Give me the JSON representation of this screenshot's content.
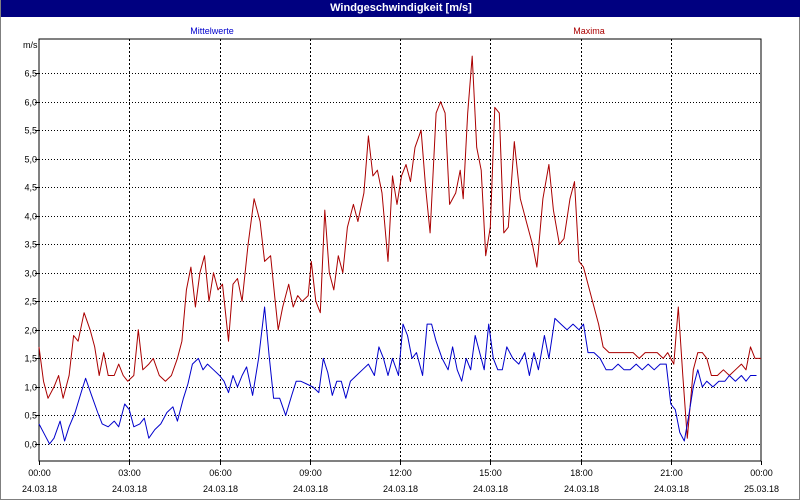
{
  "window": {
    "title": "Windgeschwindigkeit [m/s]"
  },
  "chart_data": {
    "type": "line",
    "title": "Windgeschwindigkeit [m/s]",
    "ylabel": "m/s",
    "ylim": [
      -0.3,
      7.1
    ],
    "yticks": [
      "0,0",
      "0,5",
      "1,0",
      "1,5",
      "2,0",
      "2,5",
      "3,0",
      "3,5",
      "4,0",
      "4,5",
      "5,0",
      "5,5",
      "6,0",
      "6,5"
    ],
    "ytick_values": [
      0,
      0.5,
      1,
      1.5,
      2,
      2.5,
      3,
      3.5,
      4,
      4.5,
      5,
      5.5,
      6,
      6.5
    ],
    "xlim": [
      0,
      24
    ],
    "xticks": [
      {
        "time": "00:00",
        "date": "24.03.18"
      },
      {
        "time": "03:00",
        "date": "24.03.18"
      },
      {
        "time": "06:00",
        "date": "24.03.18"
      },
      {
        "time": "09:00",
        "date": "24.03.18"
      },
      {
        "time": "12:00",
        "date": "24.03.18"
      },
      {
        "time": "15:00",
        "date": "24.03.18"
      },
      {
        "time": "18:00",
        "date": "24.03.18"
      },
      {
        "time": "21:00",
        "date": "24.03.18"
      },
      {
        "time": "00:00",
        "date": "25.03.18"
      }
    ],
    "xtick_hours": [
      0,
      3,
      6,
      9,
      12,
      15,
      18,
      21,
      24
    ],
    "grid": true,
    "series": [
      {
        "name": "Mittelwerte",
        "color": "#0000cc",
        "points": [
          [
            0.0,
            0.35
          ],
          [
            0.2,
            0.15
          ],
          [
            0.35,
            0.0
          ],
          [
            0.5,
            0.1
          ],
          [
            0.7,
            0.4
          ],
          [
            0.85,
            0.05
          ],
          [
            1.0,
            0.3
          ],
          [
            1.2,
            0.55
          ],
          [
            1.4,
            0.9
          ],
          [
            1.55,
            1.15
          ],
          [
            1.75,
            0.85
          ],
          [
            1.95,
            0.55
          ],
          [
            2.1,
            0.35
          ],
          [
            2.3,
            0.3
          ],
          [
            2.5,
            0.4
          ],
          [
            2.65,
            0.3
          ],
          [
            2.85,
            0.7
          ],
          [
            3.0,
            0.6
          ],
          [
            3.15,
            0.3
          ],
          [
            3.35,
            0.35
          ],
          [
            3.5,
            0.45
          ],
          [
            3.65,
            0.1
          ],
          [
            3.85,
            0.25
          ],
          [
            4.05,
            0.35
          ],
          [
            4.25,
            0.55
          ],
          [
            4.45,
            0.65
          ],
          [
            4.6,
            0.4
          ],
          [
            4.8,
            0.8
          ],
          [
            4.95,
            1.05
          ],
          [
            5.1,
            1.4
          ],
          [
            5.3,
            1.5
          ],
          [
            5.45,
            1.3
          ],
          [
            5.6,
            1.4
          ],
          [
            5.8,
            1.3
          ],
          [
            6.0,
            1.2
          ],
          [
            6.15,
            1.1
          ],
          [
            6.3,
            0.9
          ],
          [
            6.45,
            1.2
          ],
          [
            6.6,
            1.0
          ],
          [
            6.75,
            1.2
          ],
          [
            6.9,
            1.35
          ],
          [
            7.1,
            0.85
          ],
          [
            7.3,
            1.5
          ],
          [
            7.5,
            2.4
          ],
          [
            7.65,
            1.55
          ],
          [
            7.8,
            0.8
          ],
          [
            8.0,
            0.8
          ],
          [
            8.2,
            0.5
          ],
          [
            8.4,
            0.85
          ],
          [
            8.55,
            1.1
          ],
          [
            8.7,
            1.1
          ],
          [
            8.9,
            1.05
          ],
          [
            9.1,
            1.0
          ],
          [
            9.3,
            0.9
          ],
          [
            9.45,
            1.5
          ],
          [
            9.6,
            1.25
          ],
          [
            9.75,
            0.85
          ],
          [
            9.9,
            1.1
          ],
          [
            10.05,
            1.1
          ],
          [
            10.2,
            0.8
          ],
          [
            10.35,
            1.1
          ],
          [
            10.55,
            1.2
          ],
          [
            10.75,
            1.3
          ],
          [
            10.95,
            1.4
          ],
          [
            11.15,
            1.2
          ],
          [
            11.3,
            1.7
          ],
          [
            11.45,
            1.5
          ],
          [
            11.6,
            1.2
          ],
          [
            11.75,
            1.5
          ],
          [
            11.95,
            1.2
          ],
          [
            12.1,
            2.1
          ],
          [
            12.25,
            1.9
          ],
          [
            12.4,
            1.5
          ],
          [
            12.55,
            1.6
          ],
          [
            12.75,
            1.2
          ],
          [
            12.9,
            2.1
          ],
          [
            13.05,
            2.1
          ],
          [
            13.2,
            1.8
          ],
          [
            13.4,
            1.5
          ],
          [
            13.6,
            1.3
          ],
          [
            13.75,
            1.7
          ],
          [
            13.9,
            1.3
          ],
          [
            14.05,
            1.1
          ],
          [
            14.2,
            1.5
          ],
          [
            14.35,
            1.3
          ],
          [
            14.5,
            1.9
          ],
          [
            14.65,
            1.6
          ],
          [
            14.8,
            1.3
          ],
          [
            14.95,
            2.1
          ],
          [
            15.1,
            1.5
          ],
          [
            15.25,
            1.3
          ],
          [
            15.4,
            1.3
          ],
          [
            15.55,
            1.7
          ],
          [
            15.75,
            1.5
          ],
          [
            15.95,
            1.4
          ],
          [
            16.15,
            1.6
          ],
          [
            16.3,
            1.2
          ],
          [
            16.45,
            1.6
          ],
          [
            16.6,
            1.3
          ],
          [
            16.8,
            1.9
          ],
          [
            16.95,
            1.5
          ],
          [
            17.15,
            2.2
          ],
          [
            17.35,
            2.1
          ],
          [
            17.55,
            2.0
          ],
          [
            17.75,
            2.1
          ],
          [
            17.95,
            2.0
          ],
          [
            18.1,
            2.1
          ],
          [
            18.25,
            1.6
          ],
          [
            18.45,
            1.6
          ],
          [
            18.65,
            1.5
          ],
          [
            18.85,
            1.3
          ],
          [
            19.05,
            1.3
          ],
          [
            19.25,
            1.4
          ],
          [
            19.45,
            1.3
          ],
          [
            19.65,
            1.3
          ],
          [
            19.85,
            1.4
          ],
          [
            20.05,
            1.3
          ],
          [
            20.25,
            1.4
          ],
          [
            20.45,
            1.3
          ],
          [
            20.65,
            1.4
          ],
          [
            20.85,
            1.4
          ],
          [
            21.0,
            0.7
          ],
          [
            21.15,
            0.6
          ],
          [
            21.3,
            0.2
          ],
          [
            21.45,
            0.05
          ],
          [
            21.6,
            0.5
          ],
          [
            21.75,
            1.0
          ],
          [
            21.9,
            1.3
          ],
          [
            22.05,
            1.0
          ],
          [
            22.2,
            1.1
          ],
          [
            22.4,
            1.0
          ],
          [
            22.6,
            1.1
          ],
          [
            22.8,
            1.1
          ],
          [
            22.95,
            1.2
          ],
          [
            23.15,
            1.1
          ],
          [
            23.35,
            1.2
          ],
          [
            23.5,
            1.1
          ],
          [
            23.65,
            1.2
          ],
          [
            23.85,
            1.2
          ]
        ]
      },
      {
        "name": "Maxima",
        "color": "#aa0000",
        "points": [
          [
            0.0,
            1.7
          ],
          [
            0.15,
            1.1
          ],
          [
            0.3,
            0.8
          ],
          [
            0.5,
            1.0
          ],
          [
            0.65,
            1.2
          ],
          [
            0.8,
            0.8
          ],
          [
            1.0,
            1.2
          ],
          [
            1.15,
            1.9
          ],
          [
            1.3,
            1.8
          ],
          [
            1.5,
            2.3
          ],
          [
            1.7,
            2.0
          ],
          [
            1.85,
            1.7
          ],
          [
            2.0,
            1.2
          ],
          [
            2.15,
            1.6
          ],
          [
            2.3,
            1.2
          ],
          [
            2.5,
            1.2
          ],
          [
            2.65,
            1.4
          ],
          [
            2.8,
            1.2
          ],
          [
            2.95,
            1.1
          ],
          [
            3.15,
            1.2
          ],
          [
            3.3,
            2.0
          ],
          [
            3.45,
            1.3
          ],
          [
            3.65,
            1.4
          ],
          [
            3.8,
            1.5
          ],
          [
            4.0,
            1.2
          ],
          [
            4.2,
            1.1
          ],
          [
            4.4,
            1.2
          ],
          [
            4.6,
            1.5
          ],
          [
            4.75,
            1.8
          ],
          [
            4.9,
            2.7
          ],
          [
            5.05,
            3.1
          ],
          [
            5.2,
            2.4
          ],
          [
            5.35,
            3.0
          ],
          [
            5.5,
            3.3
          ],
          [
            5.65,
            2.5
          ],
          [
            5.8,
            3.0
          ],
          [
            5.95,
            2.7
          ],
          [
            6.1,
            2.8
          ],
          [
            6.3,
            1.8
          ],
          [
            6.45,
            2.8
          ],
          [
            6.6,
            2.9
          ],
          [
            6.75,
            2.5
          ],
          [
            6.95,
            3.5
          ],
          [
            7.15,
            4.3
          ],
          [
            7.35,
            3.9
          ],
          [
            7.5,
            3.2
          ],
          [
            7.7,
            3.3
          ],
          [
            7.85,
            2.5
          ],
          [
            7.95,
            2.0
          ],
          [
            8.1,
            2.4
          ],
          [
            8.3,
            2.8
          ],
          [
            8.45,
            2.4
          ],
          [
            8.6,
            2.6
          ],
          [
            8.75,
            2.5
          ],
          [
            8.95,
            2.6
          ],
          [
            9.05,
            3.2
          ],
          [
            9.2,
            2.5
          ],
          [
            9.35,
            2.3
          ],
          [
            9.5,
            4.1
          ],
          [
            9.65,
            3.0
          ],
          [
            9.8,
            2.7
          ],
          [
            9.95,
            3.3
          ],
          [
            10.1,
            3.0
          ],
          [
            10.25,
            3.8
          ],
          [
            10.45,
            4.2
          ],
          [
            10.6,
            3.9
          ],
          [
            10.8,
            4.4
          ],
          [
            10.95,
            5.4
          ],
          [
            11.1,
            4.7
          ],
          [
            11.25,
            4.8
          ],
          [
            11.4,
            4.4
          ],
          [
            11.6,
            3.2
          ],
          [
            11.75,
            4.7
          ],
          [
            11.9,
            4.2
          ],
          [
            12.05,
            4.7
          ],
          [
            12.2,
            4.9
          ],
          [
            12.35,
            4.6
          ],
          [
            12.5,
            5.2
          ],
          [
            12.7,
            5.5
          ],
          [
            12.85,
            4.5
          ],
          [
            13.0,
            3.7
          ],
          [
            13.2,
            5.8
          ],
          [
            13.35,
            6.0
          ],
          [
            13.5,
            5.8
          ],
          [
            13.65,
            4.2
          ],
          [
            13.85,
            4.4
          ],
          [
            14.0,
            4.8
          ],
          [
            14.1,
            4.3
          ],
          [
            14.25,
            5.8
          ],
          [
            14.4,
            6.8
          ],
          [
            14.55,
            5.2
          ],
          [
            14.7,
            4.8
          ],
          [
            14.85,
            3.3
          ],
          [
            15.0,
            3.8
          ],
          [
            15.15,
            5.9
          ],
          [
            15.3,
            5.8
          ],
          [
            15.45,
            3.7
          ],
          [
            15.6,
            3.8
          ],
          [
            15.8,
            5.3
          ],
          [
            16.0,
            4.3
          ],
          [
            16.2,
            3.9
          ],
          [
            16.4,
            3.5
          ],
          [
            16.55,
            3.1
          ],
          [
            16.75,
            4.3
          ],
          [
            16.95,
            4.9
          ],
          [
            17.1,
            4.1
          ],
          [
            17.3,
            3.5
          ],
          [
            17.45,
            3.6
          ],
          [
            17.65,
            4.3
          ],
          [
            17.8,
            4.6
          ],
          [
            17.95,
            3.2
          ],
          [
            18.1,
            3.1
          ],
          [
            18.25,
            2.8
          ],
          [
            18.4,
            2.5
          ],
          [
            18.6,
            2.1
          ],
          [
            18.75,
            1.7
          ],
          [
            18.95,
            1.6
          ],
          [
            19.15,
            1.6
          ],
          [
            19.35,
            1.6
          ],
          [
            19.55,
            1.6
          ],
          [
            19.75,
            1.6
          ],
          [
            19.95,
            1.5
          ],
          [
            20.15,
            1.6
          ],
          [
            20.35,
            1.6
          ],
          [
            20.55,
            1.6
          ],
          [
            20.75,
            1.5
          ],
          [
            20.9,
            1.6
          ],
          [
            21.1,
            1.4
          ],
          [
            21.25,
            2.4
          ],
          [
            21.4,
            1.2
          ],
          [
            21.55,
            0.1
          ],
          [
            21.75,
            1.3
          ],
          [
            21.9,
            1.6
          ],
          [
            22.05,
            1.6
          ],
          [
            22.2,
            1.5
          ],
          [
            22.35,
            1.2
          ],
          [
            22.55,
            1.2
          ],
          [
            22.75,
            1.3
          ],
          [
            22.95,
            1.2
          ],
          [
            23.15,
            1.3
          ],
          [
            23.35,
            1.4
          ],
          [
            23.5,
            1.3
          ],
          [
            23.65,
            1.7
          ],
          [
            23.8,
            1.5
          ],
          [
            24.0,
            1.5
          ]
        ]
      }
    ]
  }
}
